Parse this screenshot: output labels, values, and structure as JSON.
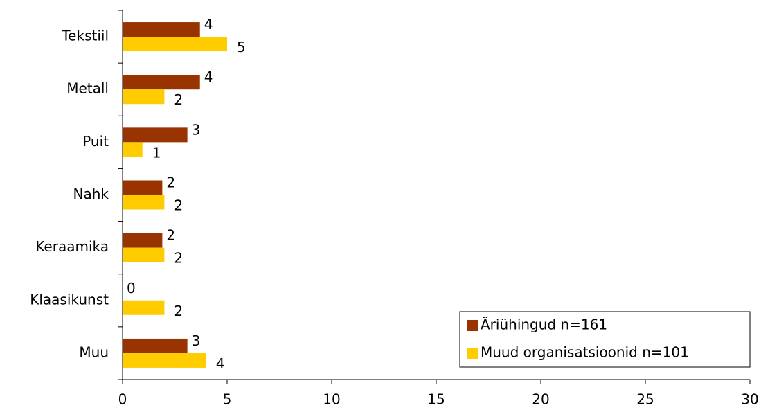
{
  "chart_data": {
    "type": "bar",
    "orientation": "horizontal",
    "categories": [
      "Tekstiil",
      "Metall",
      "Puit",
      "Nahk",
      "Keraamika",
      "Klaasikunst",
      "Muu"
    ],
    "series": [
      {
        "name": "Äriühingud n=161",
        "color": "#993300",
        "values": [
          3.7,
          3.7,
          3.1,
          1.9,
          1.9,
          0,
          3.1
        ],
        "value_labels": [
          "4",
          "4",
          "3",
          "2",
          "2",
          "0",
          "3"
        ]
      },
      {
        "name": "Muud organisatsioonid n=101",
        "color": "#ffcc00",
        "values": [
          5.0,
          2.0,
          0.95,
          2.0,
          2.0,
          2.0,
          4.0
        ],
        "value_labels": [
          "5",
          "2",
          "1",
          "2",
          "2",
          "2",
          "4"
        ]
      }
    ],
    "xlim": [
      0,
      30
    ],
    "xticks": [
      0,
      5,
      10,
      15,
      20,
      25,
      30
    ],
    "legend": "lower right"
  }
}
